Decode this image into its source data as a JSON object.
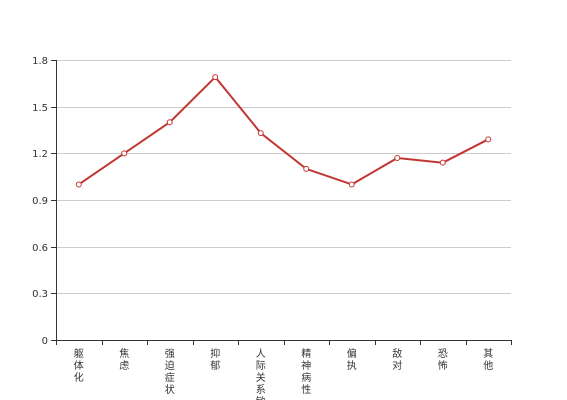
{
  "chart_data": {
    "type": "line",
    "title": "",
    "xlabel": "",
    "ylabel": "",
    "categories": [
      "躯体化",
      "焦虑",
      "强迫症状",
      "抑郁",
      "人际关系敏感",
      "精神病性",
      "偏执",
      "敌对",
      "恐怖",
      "其他"
    ],
    "series": [
      {
        "values": [
          1.0,
          1.2,
          1.4,
          1.69,
          1.33,
          1.1,
          1.0,
          1.17,
          1.14,
          1.29
        ]
      }
    ],
    "ylim": [
      0,
      1.8
    ],
    "yticks": [
      "0",
      "0.3",
      "0.6",
      "0.9",
      "1.2",
      "1.5",
      "1.8"
    ],
    "grid": true,
    "colors": {
      "line": "#c23531"
    }
  }
}
